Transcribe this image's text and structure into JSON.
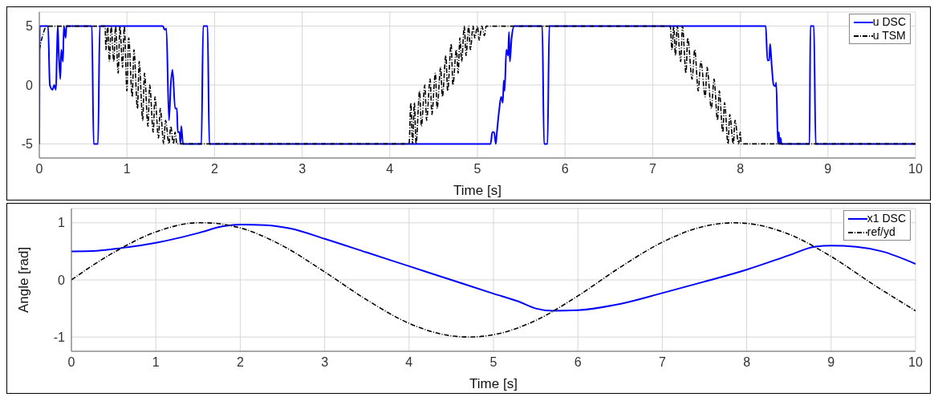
{
  "chart_data": [
    {
      "type": "line",
      "xlabel": "Time [s]",
      "xlim": [
        0,
        10
      ],
      "xticks": [
        0,
        1,
        2,
        3,
        4,
        5,
        6,
        7,
        8,
        9,
        10
      ],
      "ylim": [
        -6.2,
        6.2
      ],
      "yticks": [
        -5,
        0,
        5
      ],
      "grid": true,
      "legend": "top right",
      "series": [
        {
          "name": "u DSC",
          "color": "#0000ff",
          "line_style": "solid",
          "x": [
            0,
            0.005,
            0.1,
            0.12,
            0.15,
            0.17,
            0.19,
            0.2,
            0.21,
            0.22,
            0.24,
            0.25,
            0.27,
            0.28,
            0.3,
            0.31,
            0.6,
            0.62,
            0.67,
            0.69,
            1.41,
            1.43,
            1.45,
            1.48,
            1.5,
            1.52,
            1.55,
            1.57,
            1.58,
            1.6,
            1.61,
            1.62,
            1.64,
            1.85,
            1.87,
            1.92,
            1.94,
            5.15,
            5.17,
            5.19,
            5.21,
            5.22,
            5.25,
            5.27,
            5.29,
            5.3,
            5.31,
            5.33,
            5.35,
            5.36,
            5.37,
            5.39,
            5.42,
            5.74,
            5.76,
            5.8,
            5.82,
            8.29,
            8.31,
            8.33,
            8.34,
            8.36,
            8.38,
            8.4,
            8.41,
            8.43,
            8.44,
            8.45,
            8.46,
            8.47,
            8.79,
            8.8,
            8.84,
            8.86,
            10
          ],
          "values": [
            -5,
            5,
            5,
            0,
            -0.4,
            0,
            -0.4,
            2.5,
            5,
            3,
            0.5,
            3,
            2,
            5,
            4,
            5,
            5,
            -5,
            -5,
            5,
            5,
            4.7,
            4.8,
            -3,
            0,
            1.3,
            -2,
            -2,
            -4,
            -4,
            -5,
            -3.5,
            -5,
            -5,
            5,
            5,
            -5,
            -5,
            -4,
            -4,
            -5,
            -4.2,
            -2,
            -1,
            -1.5,
            0.4,
            -0.5,
            3,
            2.5,
            4.5,
            2,
            4,
            5,
            5,
            -5,
            -5,
            5,
            5,
            2.1,
            2.1,
            3.5,
            1.5,
            0,
            -0.1,
            0.2,
            -5,
            -4,
            -5,
            -4.5,
            -5,
            -5,
            5,
            5,
            -5,
            -5
          ]
        },
        {
          "name": "u TSM",
          "color": "#000000",
          "line_style": "dashed",
          "x": [
            0,
            0.05,
            0.08,
            0.75,
            0.76,
            0.78,
            0.8,
            0.82,
            0.85,
            0.87,
            0.9,
            0.92,
            0.95,
            0.97,
            1.0,
            1.02,
            1.06,
            1.08,
            1.12,
            1.14,
            1.18,
            1.2,
            1.24,
            1.26,
            1.3,
            1.32,
            1.36,
            1.38,
            1.42,
            1.44,
            1.48,
            1.5,
            1.53,
            1.55,
            1.57,
            4.22,
            4.24,
            4.26,
            4.28,
            4.3,
            4.34,
            4.36,
            4.4,
            4.42,
            4.46,
            4.48,
            4.52,
            4.54,
            4.58,
            4.6,
            4.64,
            4.66,
            4.7,
            4.72,
            4.76,
            4.78,
            4.8,
            4.82,
            4.85,
            4.87,
            4.9,
            4.92,
            4.95,
            4.97,
            5.0,
            5.02,
            5.05,
            5.08,
            5.1,
            7.2,
            7.22,
            7.24,
            7.26,
            7.28,
            7.32,
            7.34,
            7.38,
            7.4,
            7.45,
            7.48,
            7.52,
            7.55,
            7.6,
            7.62,
            7.67,
            7.7,
            7.74,
            7.76,
            7.8,
            7.82,
            7.86,
            7.88,
            7.92,
            7.94,
            7.98,
            8.0,
            8.01,
            10
          ],
          "values": [
            3,
            4.5,
            5,
            5,
            3,
            5,
            2,
            5,
            2,
            5,
            1,
            5,
            1.5,
            5,
            -0.5,
            4,
            -1,
            3,
            -2,
            2,
            -3,
            1,
            -3.5,
            0,
            -4,
            -1,
            -4.5,
            -2,
            -5,
            -3,
            -5,
            -3.5,
            -5,
            -4,
            -5,
            -5,
            -1.5,
            -5,
            -1.5,
            -5,
            -0.5,
            -3.5,
            0,
            -3,
            0.5,
            -2.5,
            1,
            -2,
            1.5,
            -1,
            2.5,
            -0.5,
            3.5,
            0,
            3,
            1,
            4,
            2,
            5,
            2.5,
            5,
            3,
            5,
            4,
            5,
            3.8,
            5,
            4.2,
            5,
            5,
            3,
            5,
            2.5,
            5,
            2,
            5,
            1,
            4,
            0.5,
            3,
            -0.5,
            2,
            -1,
            1.5,
            -2,
            0.5,
            -3,
            -0.5,
            -4,
            -1.5,
            -5,
            -2.5,
            -5,
            -3,
            -5,
            -4,
            -5,
            -5
          ]
        }
      ]
    },
    {
      "type": "line",
      "xlabel": "Time [s]",
      "ylabel": "Angle [rad]",
      "xlim": [
        0,
        10
      ],
      "xticks": [
        0,
        1,
        2,
        3,
        4,
        5,
        6,
        7,
        8,
        9,
        10
      ],
      "ylim": [
        -1.25,
        1.25
      ],
      "yticks": [
        -1,
        0,
        1
      ],
      "grid": true,
      "legend": "top right",
      "series": [
        {
          "name": "x1 DSC",
          "color": "#0000ff",
          "line_style": "solid",
          "x": [
            0,
            0.3,
            0.6,
            1,
            1.5,
            1.8,
            2,
            2.3,
            2.6,
            3,
            3.5,
            4,
            4.5,
            5,
            5.3,
            5.5,
            5.7,
            6,
            6.5,
            7,
            7.5,
            8,
            8.5,
            8.8,
            9,
            9.3,
            9.6,
            10
          ],
          "values": [
            0.5,
            0.51,
            0.56,
            0.65,
            0.82,
            0.94,
            0.97,
            0.96,
            0.9,
            0.72,
            0.48,
            0.24,
            0,
            -0.24,
            -0.38,
            -0.5,
            -0.54,
            -0.53,
            -0.42,
            -0.23,
            -0.03,
            0.18,
            0.43,
            0.58,
            0.6,
            0.58,
            0.5,
            0.28
          ]
        },
        {
          "name": "ref/yd",
          "color": "#000000",
          "line_style": "dashed",
          "x": [
            0,
            0.5,
            1,
            1.5,
            1.57,
            2,
            2.5,
            3,
            3.5,
            4,
            4.5,
            4.71,
            5,
            5.5,
            6,
            6.5,
            7,
            7.5,
            7.85,
            8,
            8.5,
            9,
            9.5,
            10
          ],
          "values": [
            0,
            0.48,
            0.84,
            1,
            1,
            0.91,
            0.6,
            0.14,
            -0.35,
            -0.76,
            -0.98,
            -1,
            -0.96,
            -0.71,
            -0.28,
            0.22,
            0.66,
            0.94,
            1,
            0.99,
            0.8,
            0.41,
            -0.08,
            -0.54
          ]
        }
      ]
    }
  ]
}
